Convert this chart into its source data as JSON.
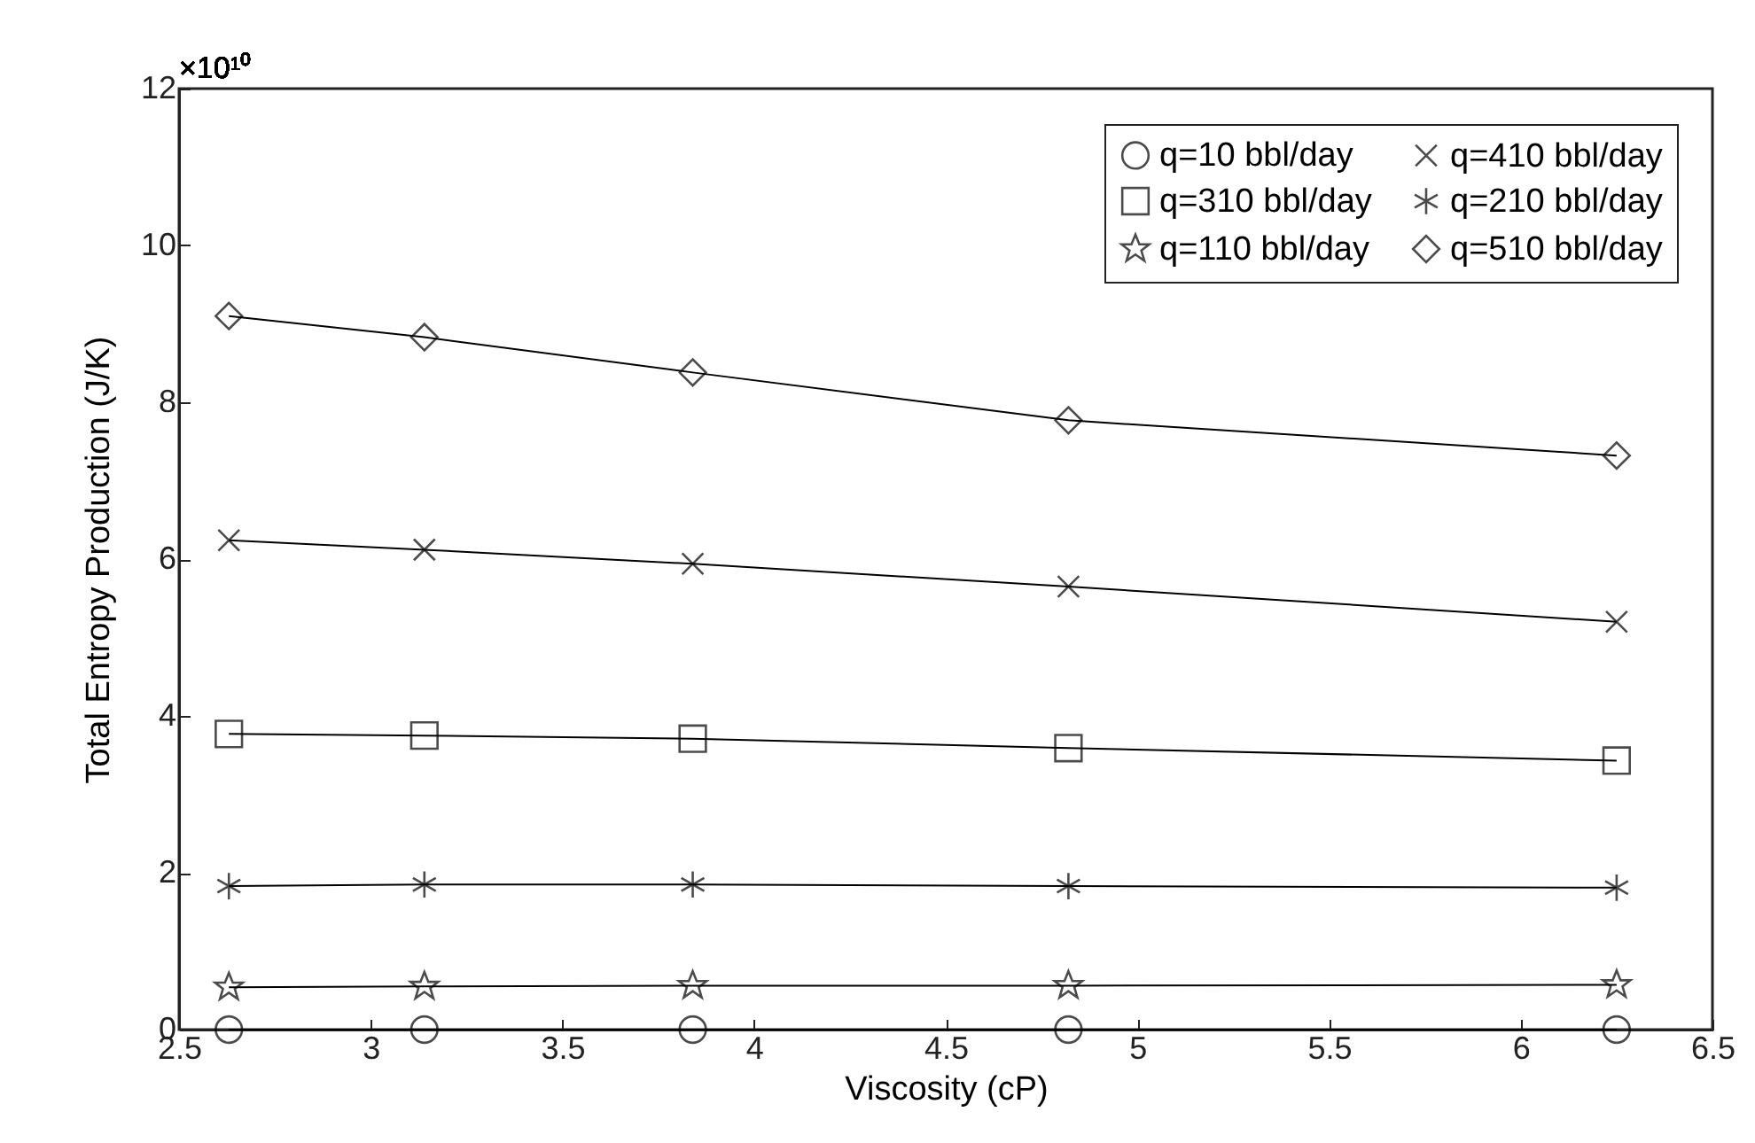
{
  "chart_data": {
    "type": "line",
    "xlabel": "Viscosity (cP)",
    "ylabel": "Total Entropy Production (J/K)",
    "annotations": [
      "×10¹⁰"
    ],
    "x": [
      2.63,
      3.14,
      3.84,
      4.82,
      6.25
    ],
    "xlim": [
      2.5,
      6.5
    ],
    "xticks": [
      2.5,
      {
        "value": 3,
        "label": "3"
      },
      3.5,
      {
        "value": 4,
        "label": "4"
      },
      4.5,
      {
        "value": 5,
        "label": "5"
      },
      5.5,
      {
        "value": 6,
        "label": "6"
      },
      6.5
    ],
    "ylim": [
      0,
      12
    ],
    "yticks": [
      0,
      2,
      4,
      6,
      8,
      10,
      12
    ],
    "grid": false,
    "legend": "top right",
    "line_style": "solid",
    "series": [
      {
        "name": "q=10 bbl/day",
        "color": "#000000",
        "marker": "circle",
        "values": [
          0,
          0,
          0,
          0,
          0
        ]
      },
      {
        "name": "q=310 bbl/day",
        "color": "#000000",
        "marker": "square",
        "values": [
          3.77,
          3.75,
          3.71,
          3.59,
          3.43
        ]
      },
      {
        "name": "q=110 bbl/day",
        "color": "#000000",
        "marker": "star",
        "values": [
          0.54,
          0.55,
          0.56,
          0.56,
          0.57
        ]
      },
      {
        "name": "q=410 bbl/day",
        "color": "#000000",
        "marker": "cross",
        "values": [
          6.24,
          6.12,
          5.94,
          5.65,
          5.2
        ]
      },
      {
        "name": "q=210 bbl/day",
        "color": "#000000",
        "marker": "cross",
        "values": [
          1.83,
          1.85,
          1.85,
          1.83,
          1.81
        ]
      },
      {
        "name": "q=510 bbl/day",
        "color": "#000000",
        "marker": "diamond",
        "values": [
          9.1,
          8.83,
          8.38,
          7.77,
          7.32
        ]
      }
    ]
  }
}
